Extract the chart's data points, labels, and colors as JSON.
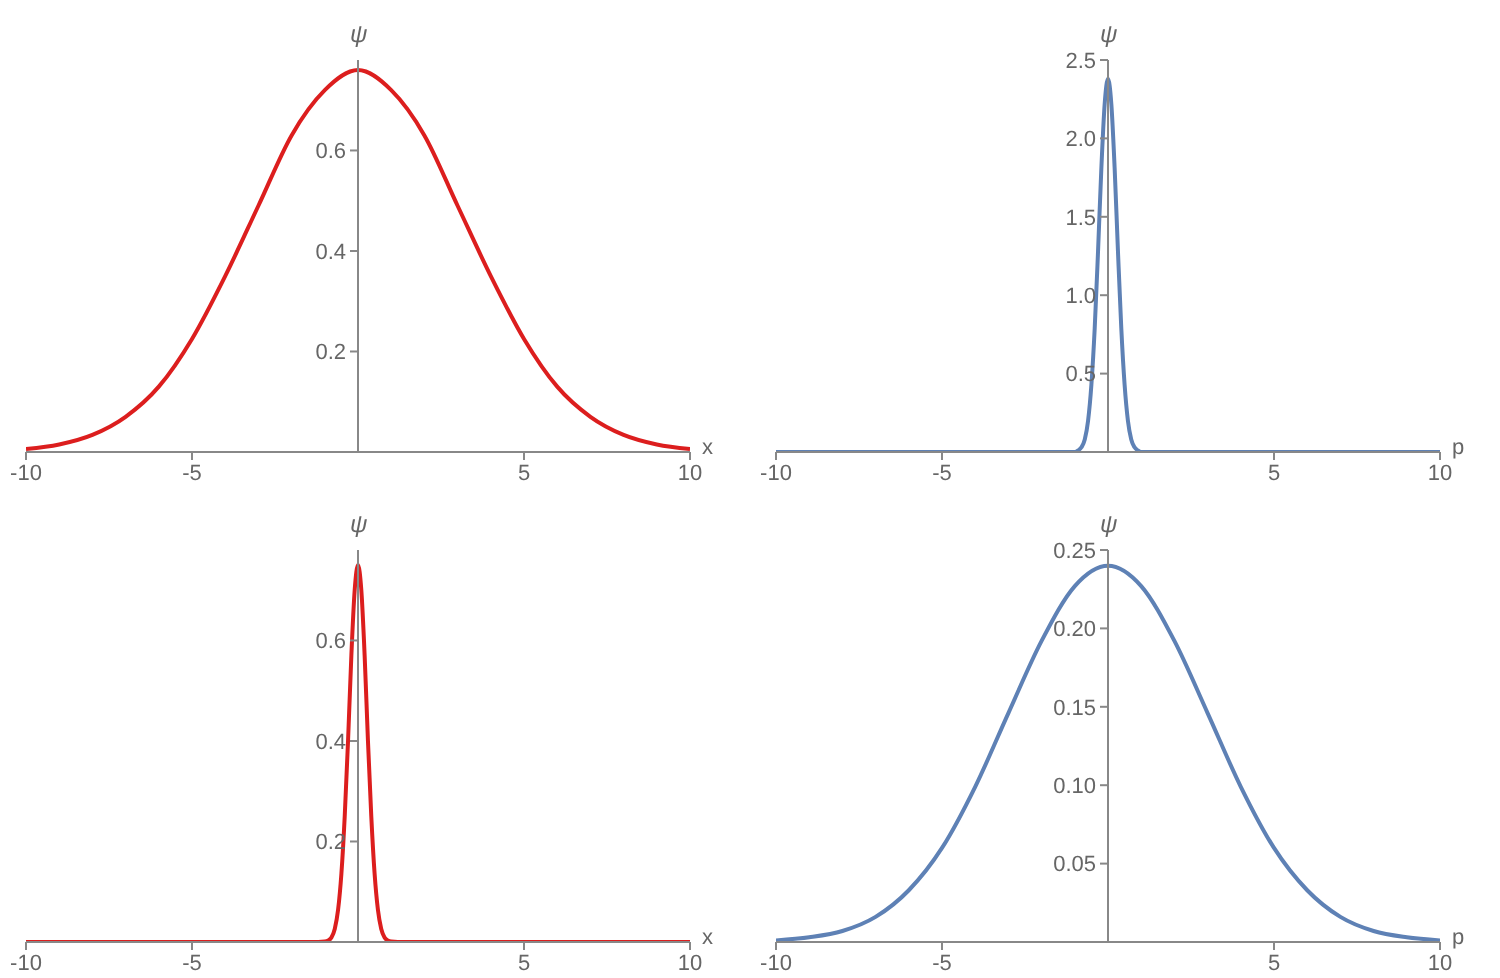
{
  "chart_data": [
    {
      "type": "line",
      "xlabel": "x",
      "ylabel": "ψ",
      "color": "#dc1e1e",
      "xlim": [
        -10,
        10
      ],
      "ylim": [
        0,
        0.78
      ],
      "xticks": [
        -10,
        -5,
        5,
        10
      ],
      "yticks": [
        0.2,
        0.4,
        0.6
      ],
      "x": [
        -10,
        -9,
        -8,
        -7,
        -6,
        -5,
        -4,
        -3,
        -2,
        -1,
        0,
        1,
        2,
        3,
        4,
        5,
        6,
        7,
        8,
        9,
        10
      ],
      "values": [
        0.006,
        0.015,
        0.034,
        0.07,
        0.13,
        0.225,
        0.35,
        0.49,
        0.63,
        0.72,
        0.76,
        0.72,
        0.63,
        0.49,
        0.35,
        0.225,
        0.13,
        0.07,
        0.034,
        0.015,
        0.006
      ]
    },
    {
      "type": "line",
      "xlabel": "p",
      "ylabel": "ψ",
      "color": "#5e81b5",
      "xlim": [
        -10,
        10
      ],
      "ylim": [
        0,
        2.5
      ],
      "xticks": [
        -10,
        -5,
        5,
        10
      ],
      "yticks": [
        0.5,
        {
          "value": 1,
          "label": "1.0"
        },
        1.5,
        {
          "value": 2,
          "label": "2.0"
        },
        2.5
      ],
      "x": [
        -10,
        -1.2,
        -1,
        -0.9,
        -0.8,
        -0.7,
        -0.6,
        -0.5,
        -0.4,
        -0.3,
        -0.2,
        -0.1,
        0,
        0.1,
        0.2,
        0.3,
        0.4,
        0.5,
        0.6,
        0.7,
        0.8,
        0.9,
        1,
        1.2,
        10
      ],
      "values": [
        0,
        0,
        0,
        0.01,
        0.03,
        0.08,
        0.2,
        0.43,
        0.79,
        1.28,
        1.81,
        2.22,
        2.38,
        2.22,
        1.81,
        1.28,
        0.79,
        0.43,
        0.2,
        0.08,
        0.03,
        0.01,
        0,
        0,
        0
      ]
    },
    {
      "type": "line",
      "xlabel": "x",
      "ylabel": "ψ",
      "color": "#dc1e1e",
      "xlim": [
        -10,
        10
      ],
      "ylim": [
        0,
        0.78
      ],
      "xticks": [
        -10,
        -5,
        5,
        10
      ],
      "yticks": [
        0.2,
        0.4,
        0.6
      ],
      "x": [
        -10,
        -1.2,
        -1,
        -0.9,
        -0.8,
        -0.7,
        -0.6,
        -0.5,
        -0.4,
        -0.3,
        -0.2,
        -0.1,
        0,
        0.1,
        0.2,
        0.3,
        0.4,
        0.5,
        0.6,
        0.7,
        0.8,
        0.9,
        1,
        1.2,
        10
      ],
      "values": [
        0,
        0,
        0.001,
        0.003,
        0.009,
        0.026,
        0.064,
        0.136,
        0.25,
        0.4,
        0.57,
        0.7,
        0.75,
        0.7,
        0.57,
        0.4,
        0.25,
        0.136,
        0.064,
        0.026,
        0.009,
        0.003,
        0.001,
        0,
        0
      ]
    },
    {
      "type": "line",
      "xlabel": "p",
      "ylabel": "ψ",
      "color": "#5e81b5",
      "xlim": [
        -10,
        10
      ],
      "ylim": [
        0,
        0.25
      ],
      "xticks": [
        -10,
        -5,
        5,
        10
      ],
      "yticks": [
        0.05,
        {
          "value": 0.1,
          "label": "0.10"
        },
        0.15,
        {
          "value": 0.2,
          "label": "0.20"
        },
        0.25
      ],
      "x": [
        -10,
        -9,
        -8,
        -7,
        -6,
        -5,
        -4,
        -3,
        -2,
        -1,
        0,
        1,
        2,
        3,
        4,
        5,
        6,
        7,
        8,
        9,
        10
      ],
      "values": [
        0.001,
        0.003,
        0.007,
        0.016,
        0.033,
        0.06,
        0.099,
        0.146,
        0.192,
        0.227,
        0.24,
        0.227,
        0.192,
        0.146,
        0.099,
        0.06,
        0.033,
        0.016,
        0.007,
        0.003,
        0.001
      ]
    }
  ]
}
